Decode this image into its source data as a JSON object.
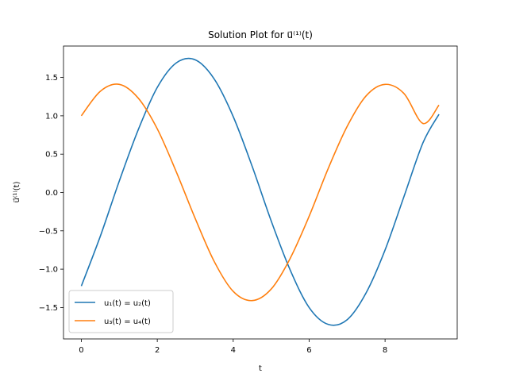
{
  "chart_data": {
    "type": "line",
    "title": "Solution Plot for u⃗⁽¹⁾(t)",
    "xlabel": "t",
    "ylabel": "u⃗⁽¹⁾(t)",
    "xlim": [
      -0.47,
      9.9
    ],
    "ylim": [
      -1.91,
      1.91
    ],
    "xticks": [
      0,
      2,
      4,
      6,
      8
    ],
    "yticks": [
      -1.5,
      -1.0,
      -0.5,
      0.0,
      0.5,
      1.0,
      1.5
    ],
    "xtick_labels": [
      "0",
      "2",
      "4",
      "6",
      "8"
    ],
    "ytick_labels": [
      "−1.5",
      "−1.0",
      "−0.5",
      "0.0",
      "0.5",
      "1.0",
      "1.5"
    ],
    "grid": false,
    "legend_position": "lower-left",
    "x": [
      0,
      0.5,
      1,
      1.5,
      2,
      2.5,
      3,
      3.5,
      4,
      4.5,
      5,
      5.5,
      6,
      6.5,
      7,
      7.5,
      8,
      8.5,
      9,
      9.42
    ],
    "series": [
      {
        "name": "u₁(t) = u₂(t)",
        "color": "#1f77b4",
        "values": [
          -1.22,
          -0.57,
          0.15,
          0.82,
          1.37,
          1.69,
          1.73,
          1.48,
          0.99,
          0.34,
          -0.37,
          -1.01,
          -1.5,
          -1.72,
          -1.66,
          -1.31,
          -0.75,
          -0.05,
          0.65,
          1.02
        ]
      },
      {
        "name": "u₃(t) = u₄(t)",
        "color": "#ff7f0e",
        "values": [
          1.0,
          1.32,
          1.41,
          1.23,
          0.83,
          0.27,
          -0.34,
          -0.9,
          -1.29,
          -1.41,
          -1.26,
          -0.86,
          -0.31,
          0.31,
          0.86,
          1.26,
          1.41,
          1.29,
          0.9,
          1.14
        ]
      }
    ]
  }
}
